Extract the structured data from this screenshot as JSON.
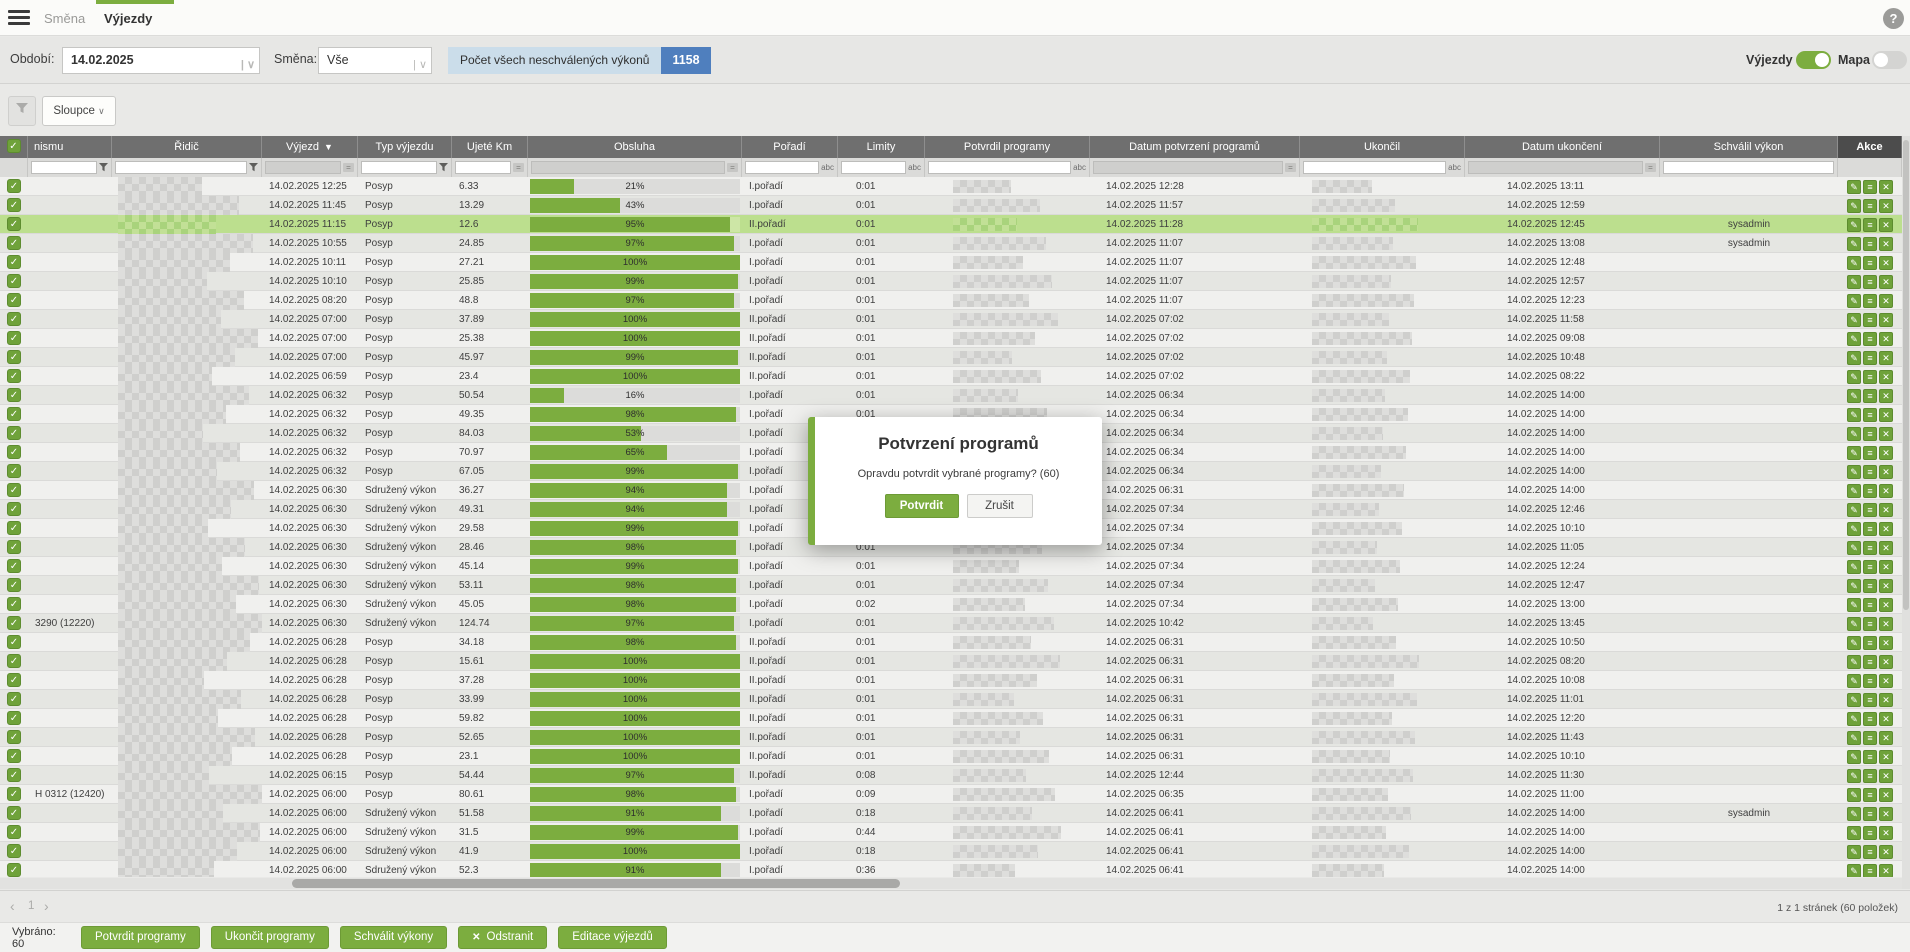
{
  "topbar": {
    "tabs": [
      {
        "label": "Směna",
        "active": false
      },
      {
        "label": "Výjezdy",
        "active": true
      }
    ],
    "help_label": "?"
  },
  "filterbar": {
    "period_label": "Období:",
    "period_value": "14.02.2025",
    "shift_label": "Směna:",
    "shift_value": "Vše",
    "unapproved_label": "Počet všech neschválených výkonů",
    "unapproved_count": "1158",
    "toggle_vyjezdy_label": "Výjezdy",
    "toggle_mapa_label": "Mapa"
  },
  "toolbar": {
    "columns_button_label": "Sloupce"
  },
  "table": {
    "select_all_checked": true,
    "columns": [
      "",
      "nismu",
      "Řidič",
      "Výjezd",
      "Typ výjezdu",
      "Ujeté Km",
      "Obsluha",
      "Pořadí",
      "Limity",
      "Potvrdil programy",
      "Datum potvrzení programů",
      "Ukončil",
      "Datum ukončení",
      "Schválil výkon",
      "Akce"
    ],
    "sorted_column": "Výjezd",
    "filters": [
      "none",
      "funnel",
      "funnel",
      "eq-gray",
      "funnel",
      "eq",
      "eq-gray",
      "abc",
      "abc",
      "abc",
      "eq-gray",
      "abc",
      "eq-gray",
      "text",
      "none"
    ],
    "abc_icon_label": "abc",
    "rows": [
      {
        "nismu": "",
        "vyjezd": "14.02.2025 12:25",
        "typ": "Posyp",
        "km": "6.33",
        "pct": 21,
        "poradi": "I.pořadí",
        "limity": "0:01",
        "potvrzeno": "14.02.2025 12:28",
        "ukonceno": "14.02.2025 13:11",
        "schvalil": "",
        "hl": false
      },
      {
        "nismu": "",
        "vyjezd": "14.02.2025 11:45",
        "typ": "Posyp",
        "km": "13.29",
        "pct": 43,
        "poradi": "I.pořadí",
        "limity": "0:01",
        "potvrzeno": "14.02.2025 11:57",
        "ukonceno": "14.02.2025 12:59",
        "schvalil": "",
        "hl": false
      },
      {
        "nismu": "",
        "vyjezd": "14.02.2025 11:15",
        "typ": "Posyp",
        "km": "12.6",
        "pct": 95,
        "poradi": "II.pořadí",
        "limity": "0:01",
        "potvrzeno": "14.02.2025 11:28",
        "ukonceno": "14.02.2025 12:45",
        "schvalil": "sysadmin",
        "hl": true
      },
      {
        "nismu": "",
        "vyjezd": "14.02.2025 10:55",
        "typ": "Posyp",
        "km": "24.85",
        "pct": 97,
        "poradi": "I.pořadí",
        "limity": "0:01",
        "potvrzeno": "14.02.2025 11:07",
        "ukonceno": "14.02.2025 13:08",
        "schvalil": "sysadmin",
        "hl": false
      },
      {
        "nismu": "",
        "vyjezd": "14.02.2025 10:11",
        "typ": "Posyp",
        "km": "27.21",
        "pct": 100,
        "poradi": "I.pořadí",
        "limity": "0:01",
        "potvrzeno": "14.02.2025 11:07",
        "ukonceno": "14.02.2025 12:48",
        "schvalil": "",
        "hl": false
      },
      {
        "nismu": "",
        "vyjezd": "14.02.2025 10:10",
        "typ": "Posyp",
        "km": "25.85",
        "pct": 99,
        "poradi": "I.pořadí",
        "limity": "0:01",
        "potvrzeno": "14.02.2025 11:07",
        "ukonceno": "14.02.2025 12:57",
        "schvalil": "",
        "hl": false
      },
      {
        "nismu": "",
        "vyjezd": "14.02.2025 08:20",
        "typ": "Posyp",
        "km": "48.8",
        "pct": 97,
        "poradi": "I.pořadí",
        "limity": "0:01",
        "potvrzeno": "14.02.2025 11:07",
        "ukonceno": "14.02.2025 12:23",
        "schvalil": "",
        "hl": false
      },
      {
        "nismu": "",
        "vyjezd": "14.02.2025 07:00",
        "typ": "Posyp",
        "km": "37.89",
        "pct": 100,
        "poradi": "II.pořadí",
        "limity": "0:01",
        "potvrzeno": "14.02.2025 07:02",
        "ukonceno": "14.02.2025 11:58",
        "schvalil": "",
        "hl": false
      },
      {
        "nismu": "",
        "vyjezd": "14.02.2025 07:00",
        "typ": "Posyp",
        "km": "25.38",
        "pct": 100,
        "poradi": "II.pořadí",
        "limity": "0:01",
        "potvrzeno": "14.02.2025 07:02",
        "ukonceno": "14.02.2025 09:08",
        "schvalil": "",
        "hl": false
      },
      {
        "nismu": "",
        "vyjezd": "14.02.2025 07:00",
        "typ": "Posyp",
        "km": "45.97",
        "pct": 99,
        "poradi": "II.pořadí",
        "limity": "0:01",
        "potvrzeno": "14.02.2025 07:02",
        "ukonceno": "14.02.2025 10:48",
        "schvalil": "",
        "hl": false
      },
      {
        "nismu": "",
        "vyjezd": "14.02.2025 06:59",
        "typ": "Posyp",
        "km": "23.4",
        "pct": 100,
        "poradi": "II.pořadí",
        "limity": "0:01",
        "potvrzeno": "14.02.2025 07:02",
        "ukonceno": "14.02.2025 08:22",
        "schvalil": "",
        "hl": false
      },
      {
        "nismu": "",
        "vyjezd": "14.02.2025 06:32",
        "typ": "Posyp",
        "km": "50.54",
        "pct": 16,
        "poradi": "I.pořadí",
        "limity": "0:01",
        "potvrzeno": "14.02.2025 06:34",
        "ukonceno": "14.02.2025 14:00",
        "schvalil": "",
        "hl": false
      },
      {
        "nismu": "",
        "vyjezd": "14.02.2025 06:32",
        "typ": "Posyp",
        "km": "49.35",
        "pct": 98,
        "poradi": "I.pořadí",
        "limity": "0:01",
        "potvrzeno": "14.02.2025 06:34",
        "ukonceno": "14.02.2025 14:00",
        "schvalil": "",
        "hl": false
      },
      {
        "nismu": "",
        "vyjezd": "14.02.2025 06:32",
        "typ": "Posyp",
        "km": "84.03",
        "pct": 53,
        "poradi": "I.pořadí",
        "limity": "0:01",
        "potvrzeno": "14.02.2025 06:34",
        "ukonceno": "14.02.2025 14:00",
        "schvalil": "",
        "hl": false
      },
      {
        "nismu": "",
        "vyjezd": "14.02.2025 06:32",
        "typ": "Posyp",
        "km": "70.97",
        "pct": 65,
        "poradi": "I.pořadí",
        "limity": "0:01",
        "potvrzeno": "14.02.2025 06:34",
        "ukonceno": "14.02.2025 14:00",
        "schvalil": "",
        "hl": false
      },
      {
        "nismu": "",
        "vyjezd": "14.02.2025 06:32",
        "typ": "Posyp",
        "km": "67.05",
        "pct": 99,
        "poradi": "I.pořadí",
        "limity": "0:01",
        "potvrzeno": "14.02.2025 06:34",
        "ukonceno": "14.02.2025 14:00",
        "schvalil": "",
        "hl": false
      },
      {
        "nismu": "",
        "vyjezd": "14.02.2025 06:30",
        "typ": "Sdružený výkon",
        "km": "36.27",
        "pct": 94,
        "poradi": "I.pořadí",
        "limity": "0:01",
        "potvrzeno": "14.02.2025 06:31",
        "ukonceno": "14.02.2025 14:00",
        "schvalil": "",
        "hl": false
      },
      {
        "nismu": "",
        "vyjezd": "14.02.2025 06:30",
        "typ": "Sdružený výkon",
        "km": "49.31",
        "pct": 94,
        "poradi": "I.pořadí",
        "limity": "0:01",
        "potvrzeno": "14.02.2025 07:34",
        "ukonceno": "14.02.2025 12:46",
        "schvalil": "",
        "hl": false
      },
      {
        "nismu": "",
        "vyjezd": "14.02.2025 06:30",
        "typ": "Sdružený výkon",
        "km": "29.58",
        "pct": 99,
        "poradi": "I.pořadí",
        "limity": "0:01",
        "potvrzeno": "14.02.2025 07:34",
        "ukonceno": "14.02.2025 10:10",
        "schvalil": "",
        "hl": false
      },
      {
        "nismu": "",
        "vyjezd": "14.02.2025 06:30",
        "typ": "Sdružený výkon",
        "km": "28.46",
        "pct": 98,
        "poradi": "I.pořadí",
        "limity": "0:01",
        "potvrzeno": "14.02.2025 07:34",
        "ukonceno": "14.02.2025 11:05",
        "schvalil": "",
        "hl": false
      },
      {
        "nismu": "",
        "vyjezd": "14.02.2025 06:30",
        "typ": "Sdružený výkon",
        "km": "45.14",
        "pct": 99,
        "poradi": "I.pořadí",
        "limity": "0:01",
        "potvrzeno": "14.02.2025 07:34",
        "ukonceno": "14.02.2025 12:24",
        "schvalil": "",
        "hl": false
      },
      {
        "nismu": "",
        "vyjezd": "14.02.2025 06:30",
        "typ": "Sdružený výkon",
        "km": "53.11",
        "pct": 98,
        "poradi": "I.pořadí",
        "limity": "0:01",
        "potvrzeno": "14.02.2025 07:34",
        "ukonceno": "14.02.2025 12:47",
        "schvalil": "",
        "hl": false
      },
      {
        "nismu": "",
        "vyjezd": "14.02.2025 06:30",
        "typ": "Sdružený výkon",
        "km": "45.05",
        "pct": 98,
        "poradi": "I.pořadí",
        "limity": "0:02",
        "potvrzeno": "14.02.2025 07:34",
        "ukonceno": "14.02.2025 13:00",
        "schvalil": "",
        "hl": false
      },
      {
        "nismu": "3290 (12220)",
        "vyjezd": "14.02.2025 06:30",
        "typ": "Sdružený výkon",
        "km": "124.74",
        "pct": 97,
        "poradi": "I.pořadí",
        "limity": "0:01",
        "potvrzeno": "14.02.2025 10:42",
        "ukonceno": "14.02.2025 13:45",
        "schvalil": "",
        "hl": false
      },
      {
        "nismu": "",
        "vyjezd": "14.02.2025 06:28",
        "typ": "Posyp",
        "km": "34.18",
        "pct": 98,
        "poradi": "II.pořadí",
        "limity": "0:01",
        "potvrzeno": "14.02.2025 06:31",
        "ukonceno": "14.02.2025 10:50",
        "schvalil": "",
        "hl": false
      },
      {
        "nismu": "",
        "vyjezd": "14.02.2025 06:28",
        "typ": "Posyp",
        "km": "15.61",
        "pct": 100,
        "poradi": "II.pořadí",
        "limity": "0:01",
        "potvrzeno": "14.02.2025 06:31",
        "ukonceno": "14.02.2025 08:20",
        "schvalil": "",
        "hl": false
      },
      {
        "nismu": "",
        "vyjezd": "14.02.2025 06:28",
        "typ": "Posyp",
        "km": "37.28",
        "pct": 100,
        "poradi": "II.pořadí",
        "limity": "0:01",
        "potvrzeno": "14.02.2025 06:31",
        "ukonceno": "14.02.2025 10:08",
        "schvalil": "",
        "hl": false
      },
      {
        "nismu": "",
        "vyjezd": "14.02.2025 06:28",
        "typ": "Posyp",
        "km": "33.99",
        "pct": 100,
        "poradi": "II.pořadí",
        "limity": "0:01",
        "potvrzeno": "14.02.2025 06:31",
        "ukonceno": "14.02.2025 11:01",
        "schvalil": "",
        "hl": false
      },
      {
        "nismu": "",
        "vyjezd": "14.02.2025 06:28",
        "typ": "Posyp",
        "km": "59.82",
        "pct": 100,
        "poradi": "II.pořadí",
        "limity": "0:01",
        "potvrzeno": "14.02.2025 06:31",
        "ukonceno": "14.02.2025 12:20",
        "schvalil": "",
        "hl": false
      },
      {
        "nismu": "",
        "vyjezd": "14.02.2025 06:28",
        "typ": "Posyp",
        "km": "52.65",
        "pct": 100,
        "poradi": "II.pořadí",
        "limity": "0:01",
        "potvrzeno": "14.02.2025 06:31",
        "ukonceno": "14.02.2025 11:43",
        "schvalil": "",
        "hl": false
      },
      {
        "nismu": "",
        "vyjezd": "14.02.2025 06:28",
        "typ": "Posyp",
        "km": "23.1",
        "pct": 100,
        "poradi": "II.pořadí",
        "limity": "0:01",
        "potvrzeno": "14.02.2025 06:31",
        "ukonceno": "14.02.2025 10:10",
        "schvalil": "",
        "hl": false
      },
      {
        "nismu": "",
        "vyjezd": "14.02.2025 06:15",
        "typ": "Posyp",
        "km": "54.44",
        "pct": 97,
        "poradi": "II.pořadí",
        "limity": "0:08",
        "potvrzeno": "14.02.2025 12:44",
        "ukonceno": "14.02.2025 11:30",
        "schvalil": "",
        "hl": false
      },
      {
        "nismu": "H 0312 (12420)",
        "vyjezd": "14.02.2025 06:00",
        "typ": "Posyp",
        "km": "80.61",
        "pct": 98,
        "poradi": "I.pořadí",
        "limity": "0:09",
        "potvrzeno": "14.02.2025 06:35",
        "ukonceno": "14.02.2025 11:00",
        "schvalil": "",
        "hl": false
      },
      {
        "nismu": "",
        "vyjezd": "14.02.2025 06:00",
        "typ": "Sdružený výkon",
        "km": "51.58",
        "pct": 91,
        "poradi": "I.pořadí",
        "limity": "0:18",
        "potvrzeno": "14.02.2025 06:41",
        "ukonceno": "14.02.2025 14:00",
        "schvalil": "sysadmin",
        "hl": false
      },
      {
        "nismu": "",
        "vyjezd": "14.02.2025 06:00",
        "typ": "Sdružený výkon",
        "km": "31.5",
        "pct": 99,
        "poradi": "I.pořadí",
        "limity": "0:44",
        "potvrzeno": "14.02.2025 06:41",
        "ukonceno": "14.02.2025 14:00",
        "schvalil": "",
        "hl": false
      },
      {
        "nismu": "",
        "vyjezd": "14.02.2025 06:00",
        "typ": "Sdružený výkon",
        "km": "41.9",
        "pct": 100,
        "poradi": "I.pořadí",
        "limity": "0:18",
        "potvrzeno": "14.02.2025 06:41",
        "ukonceno": "14.02.2025 14:00",
        "schvalil": "",
        "hl": false
      },
      {
        "nismu": "",
        "vyjezd": "14.02.2025 06:00",
        "typ": "Sdružený výkon",
        "km": "52.3",
        "pct": 91,
        "poradi": "I.pořadí",
        "limity": "0:36",
        "potvrzeno": "14.02.2025 06:41",
        "ukonceno": "14.02.2025 14:00",
        "schvalil": "",
        "hl": false
      }
    ]
  },
  "modal": {
    "title": "Potvrzení programů",
    "message": "Opravdu potvrdit vybrané programy? (60)",
    "confirm_label": "Potvrdit",
    "cancel_label": "Zrušit"
  },
  "pagination": {
    "page": "1",
    "info": "1 z 1 stránek (60 položek)"
  },
  "actionbar": {
    "selected_label": "Vybráno: 60",
    "buttons": [
      {
        "label": "Potvrdit programy",
        "icon": ""
      },
      {
        "label": "Ukončit programy",
        "icon": ""
      },
      {
        "label": "Schválit výkony",
        "icon": ""
      },
      {
        "label": "Odstranit",
        "icon": "x"
      },
      {
        "label": "Editace výjezdů",
        "icon": ""
      }
    ]
  },
  "colors": {
    "accent_green": "#7CAD3F",
    "row_highlight": "#BCDF8E",
    "badge_blue": "#4F7FBE",
    "header_gray": "#6F6F6F"
  }
}
